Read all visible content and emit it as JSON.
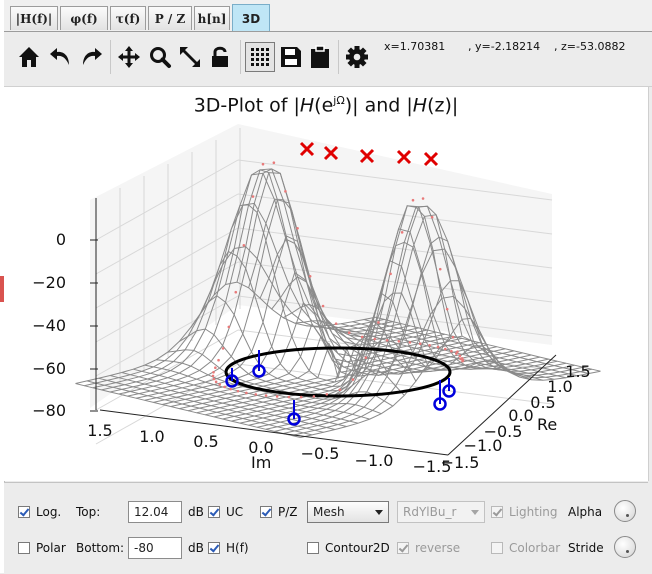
{
  "tabs": [
    {
      "label": "|H(f)|"
    },
    {
      "label": "φ(f)"
    },
    {
      "label": "τ(f)"
    },
    {
      "label": "P / Z"
    },
    {
      "label": "h[n]"
    },
    {
      "label": "3D",
      "active": true
    }
  ],
  "toolbar": {
    "icons": [
      "home-icon",
      "undo-icon",
      "redo-icon",
      "pan-icon",
      "zoom-icon",
      "fullscreen-icon",
      "lock-icon",
      "grid-icon",
      "save-icon",
      "clipboard-icon",
      "gear-icon"
    ],
    "coord_x": "x=1.70381",
    "coord_y": ", y=-2.18214",
    "coord_z": ", z=-53.0882"
  },
  "plot": {
    "title_prefix": "3D-Plot of |",
    "title_H1": "H",
    "title_e": "(e",
    "title_sup": "jΩ",
    "title_mid": ")| and |",
    "title_H2": "H",
    "title_z": "(z)|",
    "z_ticks": [
      "0",
      "−20",
      "−40",
      "−60",
      "−80"
    ],
    "im_ticks": [
      "1.5",
      "1.0",
      "0.5",
      "0.0",
      "−0.5",
      "−1.0",
      "−1.5"
    ],
    "re_ticks": [
      "1.5",
      "1.0",
      "0.5",
      "0.0",
      "−0.5",
      "−1.0",
      "−1.5"
    ],
    "im_label": "Im",
    "re_label": "Re",
    "colors": {
      "mesh": "#8c8c8c",
      "pole": "#e00000",
      "zero": "#0000dd",
      "uc": "#000000",
      "hf": "#e87a7a"
    }
  },
  "controls": {
    "log_label": "Log.",
    "top_label": "Top:",
    "top_value": "12.04",
    "top_unit": "dB",
    "uc_label": "UC",
    "pz_label": "P/Z",
    "plot_type": "Mesh",
    "colormap": "RdYlBu_r",
    "lighting_label": "Lighting",
    "alpha_label": "Alpha",
    "polar_label": "Polar",
    "bottom_label": "Bottom:",
    "bottom_value": "-80",
    "bottom_unit": "dB",
    "hf_label": "H(f)",
    "contour_label": "Contour2D",
    "reverse_label": "reverse",
    "colorbar_label": "Colorbar",
    "stride_label": "Stride"
  }
}
